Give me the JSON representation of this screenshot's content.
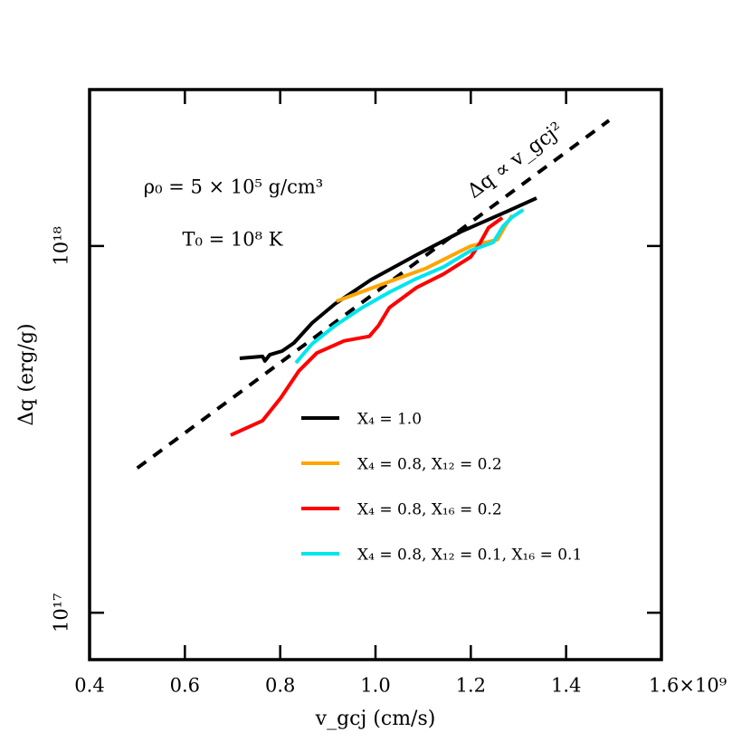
{
  "chart_data": {
    "type": "line",
    "xlabel": "v_gcj (cm/s)",
    "ylabel": "Δq (erg/g)",
    "xlim": [
      400000000.0,
      1600000000.0
    ],
    "xticks": [
      {
        "value": 400000000.0,
        "label": "0.4"
      },
      {
        "value": 600000000.0,
        "label": "0.6"
      },
      {
        "value": 800000000.0,
        "label": "0.8"
      },
      {
        "value": 1000000000.0,
        "label": "1.0"
      },
      {
        "value": 1200000000.0,
        "label": "1.2"
      },
      {
        "value": 1400000000.0,
        "label": "1.4"
      },
      {
        "value": 1600000000.0,
        "label": "1.6×10⁹"
      }
    ],
    "ylim": [
      7.45e+16,
      2.67e+18
    ],
    "yticks": [
      {
        "value": 1e+17,
        "label": "10¹⁷"
      },
      {
        "value": 1e+18,
        "label": "10¹⁸"
      }
    ],
    "log_y": true,
    "annotations": [
      "ρ₀ = 5 × 10⁵ g/cm³",
      "T₀ = 10⁸ K"
    ],
    "reference": {
      "label": "Δq ∝ v_gcj²",
      "color": "#000000",
      "x": [
        500000000.0,
        1490000000.0
      ],
      "values": [
        2.48e+17,
        2.2e+18
      ]
    },
    "series": [
      {
        "name": "X₄ = 1.0",
        "color": "#000000",
        "x": [
          715000000.0,
          763000000.0,
          768000000.0,
          778000000.0,
          804000000.0,
          829000000.0,
          867000000.0,
          915000000.0,
          991000000.0,
          1086000000.0,
          1180000000.0,
          1275000000.0,
          1338000000.0
        ],
        "values": [
          4.94e+17,
          5e+17,
          4.86e+17,
          5.05e+17,
          5.17e+17,
          5.44e+17,
          6.17e+17,
          6.95e+17,
          8.1e+17,
          9.45e+17,
          1.095e+18,
          1.241e+18,
          1.351e+18
        ]
      },
      {
        "name": "X₄ = 0.8, X₁₂ = 0.2",
        "color": "#ffa500",
        "x": [
          918000000.0,
          1010000000.0,
          1105000000.0,
          1200000000.0,
          1256000000.0,
          1272000000.0,
          1287000000.0
        ],
        "values": [
          7.07e+17,
          7.83e+17,
          8.68e+17,
          1e+18,
          1.041e+18,
          1.133e+18,
          1.213e+18
        ]
      },
      {
        "name": "X₄ = 0.8, X₁₆ = 0.2",
        "color": "#ff0000",
        "x": [
          696000000.0,
          763000000.0,
          801000000.0,
          839000000.0,
          877000000.0,
          934000000.0,
          987000000.0,
          1006000000.0,
          1029000000.0,
          1086000000.0,
          1143000000.0,
          1200000000.0,
          1218000000.0,
          1237000000.0,
          1266000000.0
        ],
        "values": [
          3.05e+17,
          3.34e+17,
          3.85e+17,
          4.56e+17,
          5.11e+17,
          5.51e+17,
          5.67e+17,
          6.06e+17,
          6.79e+17,
          7.7e+17,
          8.39e+17,
          9.34e+17,
          1.011e+18,
          1.121e+18,
          1.193e+18
        ]
      },
      {
        "name": "X₄ = 0.8, X₁₂ = 0.1, X₁₆ = 0.1",
        "color": "#00e5ee",
        "x": [
          833000000.0,
          867000000.0,
          915000000.0,
          972000000.0,
          1029000000.0,
          1086000000.0,
          1143000000.0,
          1200000000.0,
          1247000000.0,
          1268000000.0,
          1287000000.0,
          1310000000.0
        ],
        "values": [
          4.8e+17,
          5.41e+17,
          6.06e+17,
          6.79e+17,
          7.48e+17,
          8.15e+17,
          8.77e+17,
          9.72e+17,
          1.023e+18,
          1.133e+18,
          1.2e+18,
          1.255e+18
        ]
      }
    ]
  }
}
